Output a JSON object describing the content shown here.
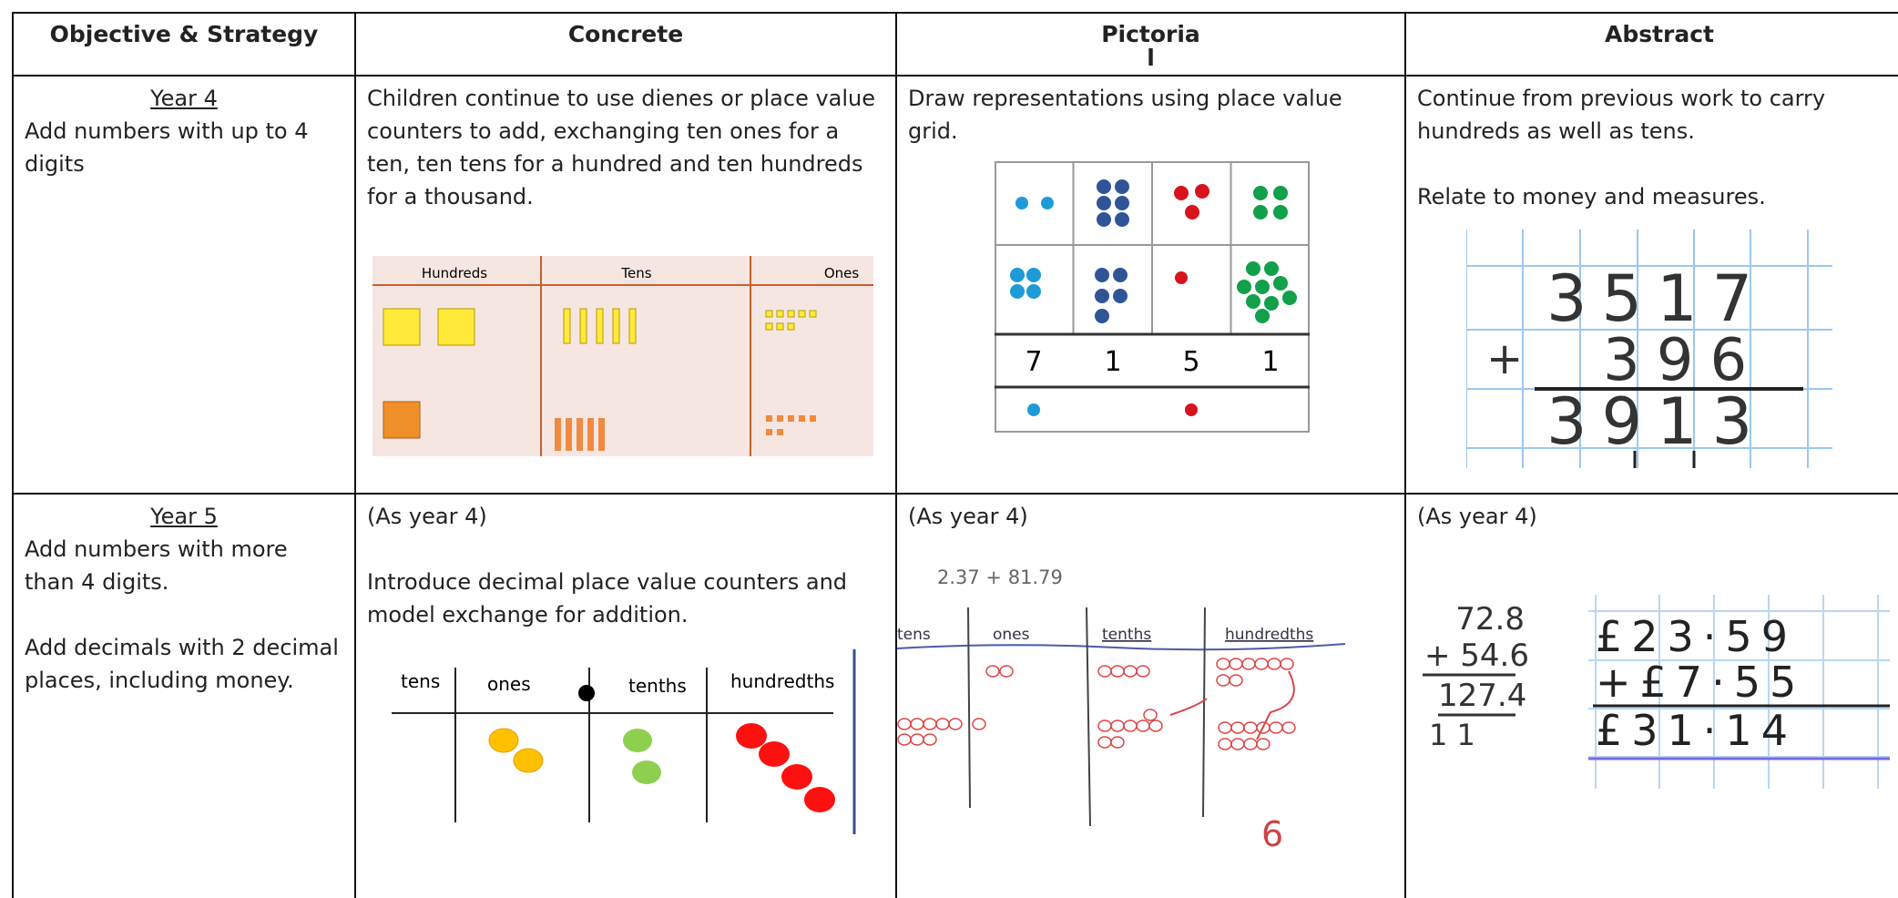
{
  "table": {
    "header": [
      [
        "Objective & Strategy"
      ],
      [
        "Concrete"
      ],
      [
        "Pictoria",
        "l"
      ],
      [
        "Abstract"
      ]
    ],
    "rows": [
      {
        "objective": {
          "year": "Year 4",
          "paragraphs": [
            "Add numbers with up to 4 digits"
          ]
        },
        "concrete": {
          "paragraphs": [
            "Children continue to use dienes or place value counters to add, exchanging ten ones for a ten, ten tens for a hundred and ten hundreds for a thousand."
          ],
          "figure": {
            "columns": [
              "Hundreds",
              "Tens",
              "Ones"
            ]
          }
        },
        "pictorial": {
          "paragraphs": [
            "Draw representations using place value grid."
          ],
          "figure": {
            "digits": [
              7,
              1,
              5,
              1
            ]
          }
        },
        "abstract": {
          "paragraphs": [
            "Continue from previous work to carry hundreds as well as tens.",
            "Relate to money and measures."
          ],
          "figure": {
            "lines": [
              "3517",
              "+",
              "396",
              "3913"
            ]
          }
        }
      },
      {
        "objective": {
          "year": "Year 5",
          "paragraphs": [
            "Add numbers with more than 4 digits.",
            "Add decimals with 2 decimal places, including money."
          ]
        },
        "concrete": {
          "paragraphs": [
            "(As year 4)",
            "Introduce decimal place value counters and model exchange for addition."
          ],
          "figure": {
            "columns": [
              "tens",
              "ones",
              "tenths",
              "hundredths"
            ]
          }
        },
        "pictorial": {
          "paragraphs": [
            "(As year 4)"
          ],
          "figure": {
            "sum": "2.37 + 81.79",
            "columns": [
              "tens",
              "ones",
              "tenths",
              "hundredths"
            ],
            "result": "6"
          }
        },
        "abstract": {
          "paragraphs": [
            "(As year 4)"
          ],
          "figure": {
            "column_sum": [
              "72.8",
              "+ 54.6",
              "127.4",
              "1 1"
            ],
            "money_sum": [
              "£23·59",
              "+£7·55",
              "£31·14"
            ]
          }
        }
      }
    ]
  }
}
